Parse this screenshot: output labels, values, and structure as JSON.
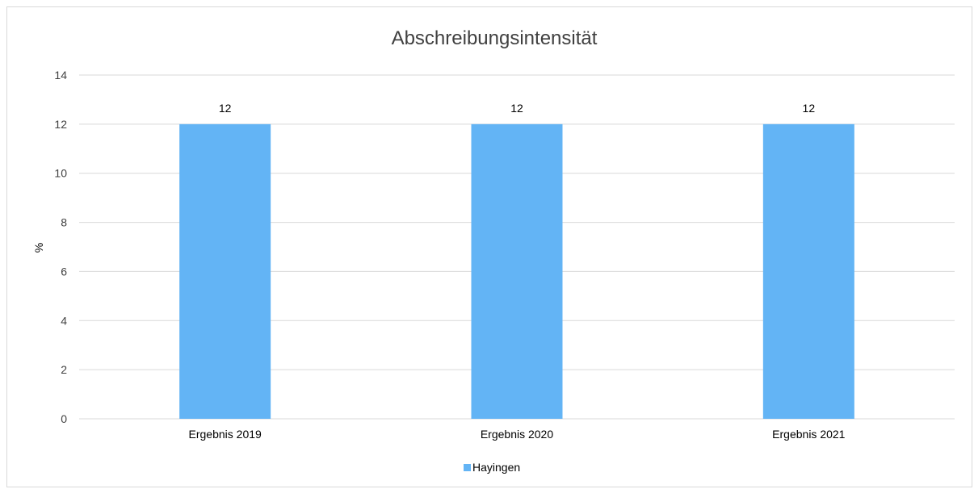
{
  "chart_data": {
    "type": "bar",
    "title": "Abschreibungsintensität",
    "xlabel": "",
    "ylabel": "%",
    "categories": [
      "Ergebnis 2019",
      "Ergebnis 2020",
      "Ergebnis 2021"
    ],
    "series": [
      {
        "name": "Hayingen",
        "values": [
          12,
          12,
          12
        ],
        "color": "#63b4f5"
      }
    ],
    "ylim": [
      0,
      14
    ],
    "yticks": [
      0,
      2,
      4,
      6,
      8,
      10,
      12,
      14
    ],
    "grid": true,
    "data_labels": true,
    "legend_position": "bottom"
  },
  "colors": {
    "bar": "#63b4f5",
    "grid": "#d9d9d9",
    "axis": "#d9d9d9"
  }
}
